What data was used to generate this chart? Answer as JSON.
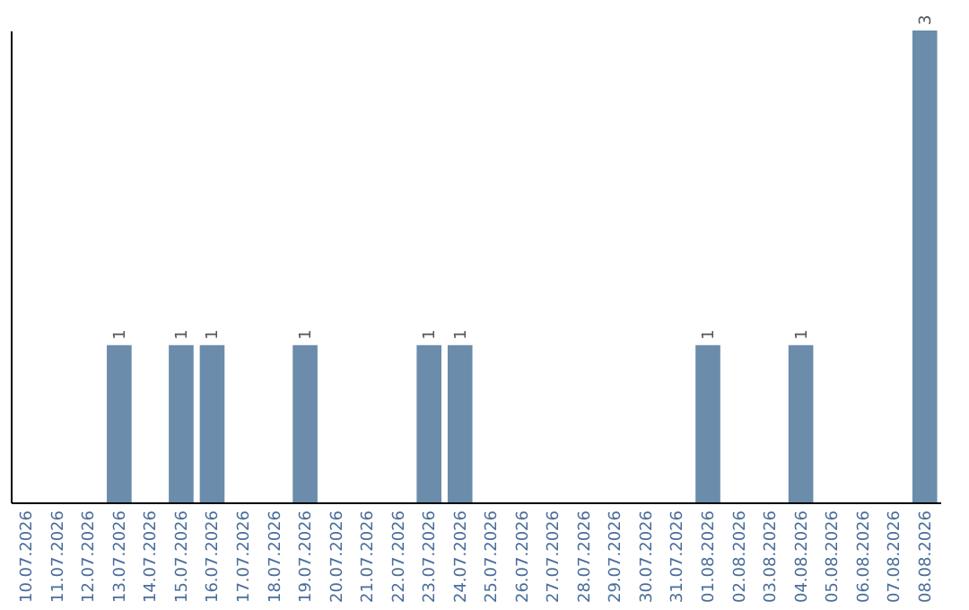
{
  "chart_data": {
    "type": "bar",
    "categories": [
      "10.07.2026",
      "11.07.2026",
      "12.07.2026",
      "13.07.2026",
      "14.07.2026",
      "15.07.2026",
      "16.07.2026",
      "17.07.2026",
      "18.07.2026",
      "19.07.2026",
      "20.07.2026",
      "21.07.2026",
      "22.07.2026",
      "23.07.2026",
      "24.07.2026",
      "25.07.2026",
      "26.07.2026",
      "27.07.2026",
      "28.07.2026",
      "29.07.2026",
      "30.07.2026",
      "31.07.2026",
      "01.08.2026",
      "02.08.2026",
      "03.08.2026",
      "04.08.2026",
      "05.08.2026",
      "06.08.2026",
      "07.08.2026",
      "08.08.2026"
    ],
    "values": [
      0,
      0,
      0,
      1,
      0,
      1,
      1,
      0,
      0,
      1,
      0,
      0,
      0,
      1,
      1,
      0,
      0,
      0,
      0,
      0,
      0,
      0,
      1,
      0,
      0,
      1,
      0,
      0,
      0,
      3
    ],
    "value_labels": [
      null,
      null,
      null,
      "1",
      null,
      "1",
      "1",
      null,
      null,
      "1",
      null,
      null,
      null,
      "1",
      "1",
      null,
      null,
      null,
      null,
      null,
      null,
      null,
      "1",
      null,
      null,
      "1",
      null,
      null,
      null,
      "3"
    ],
    "color": "#6b8cab",
    "grid": false
  }
}
